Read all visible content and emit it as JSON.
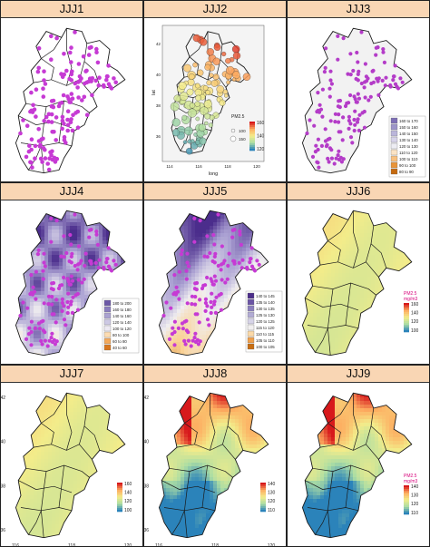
{
  "panels": [
    {
      "id": "p1",
      "title": "JJJ1",
      "style": "points"
    },
    {
      "id": "p2",
      "title": "JJJ2",
      "style": "bubble",
      "axes": {
        "ylabel": "lat",
        "xlabel": "long",
        "xticks": [
          "114",
          "116",
          "118",
          "120"
        ],
        "yticks": [
          "42",
          "40",
          "38",
          "36"
        ]
      },
      "legend": {
        "title": "PM2.5",
        "colorbar": [
          "160",
          "140",
          "120"
        ],
        "sizes": [
          "100",
          "150"
        ]
      }
    },
    {
      "id": "p3",
      "title": "JJJ3",
      "style": "ranked",
      "legend": {
        "items": [
          "160 to 170",
          "150 to 160",
          "140 to 150",
          "130 to 140",
          "120 to 130",
          "110 to 120",
          "100 to 110",
          "90 to 100",
          "80 to 90"
        ],
        "colors": [
          "#7e6fb5",
          "#9d95c9",
          "#bab5da",
          "#d6d3e9",
          "#ededf3",
          "#fbe3c4",
          "#f8c07f",
          "#e99437",
          "#c56a10"
        ]
      }
    },
    {
      "id": "p4",
      "title": "JJJ4",
      "style": "kernel",
      "legend": {
        "items": [
          "180 to 200",
          "160 to 180",
          "140 to 160",
          "120 to 140",
          "100 to 120",
          "80 to 100",
          "60 to 80",
          "40 to 60"
        ],
        "colors": [
          "#6b58a6",
          "#8a7dbd",
          "#aaa2d0",
          "#cdc9e4",
          "#ece9f2",
          "#fcdcb2",
          "#f4a95a",
          "#d8761e"
        ]
      }
    },
    {
      "id": "p5",
      "title": "JJJ5",
      "style": "kernel2",
      "legend": {
        "items": [
          "140 to 145",
          "135 to 140",
          "130 to 135",
          "125 to 130",
          "120 to 125",
          "115 to 120",
          "110 to 115",
          "105 to 110",
          "100 to 105"
        ],
        "colors": [
          "#4b2d8a",
          "#6b55a5",
          "#8c80bd",
          "#b1abd3",
          "#d6d3e7",
          "#f1efef",
          "#fbd9a8",
          "#f0a04c",
          "#c86e13"
        ]
      }
    },
    {
      "id": "p6",
      "title": "JJJ6",
      "style": "surface_flat",
      "legend": {
        "title": "PM2.5 mg/m3",
        "ticks": [
          "160",
          "140",
          "120",
          "100"
        ]
      }
    },
    {
      "id": "p7",
      "title": "JJJ7",
      "style": "surface_flat2",
      "axes": {
        "xticks": [
          "116",
          "118",
          "120"
        ],
        "yticks": [
          "42",
          "40",
          "38",
          "36"
        ]
      },
      "legend": {
        "ticks": [
          "160",
          "140",
          "120",
          "100"
        ]
      }
    },
    {
      "id": "p8",
      "title": "JJJ8",
      "style": "surface_strong",
      "axes": {
        "xticks": [
          "116",
          "118",
          "120"
        ],
        "yticks": [
          "42",
          "40",
          "38",
          "36"
        ]
      },
      "legend": {
        "ticks": [
          "140",
          "130",
          "120",
          "110"
        ]
      }
    },
    {
      "id": "p9",
      "title": "JJJ9",
      "style": "surface_strong",
      "legend": {
        "title": "PM2.5 mg/m3",
        "ticks": [
          "140",
          "130",
          "120",
          "110"
        ]
      }
    }
  ],
  "palette": {
    "title_bg": "#f9d6b4",
    "point": "#c63ad4",
    "boundary": "#1a1a1a",
    "low": "#2b83ba",
    "mid": "#f3ec8a",
    "high": "#d7191c"
  }
}
